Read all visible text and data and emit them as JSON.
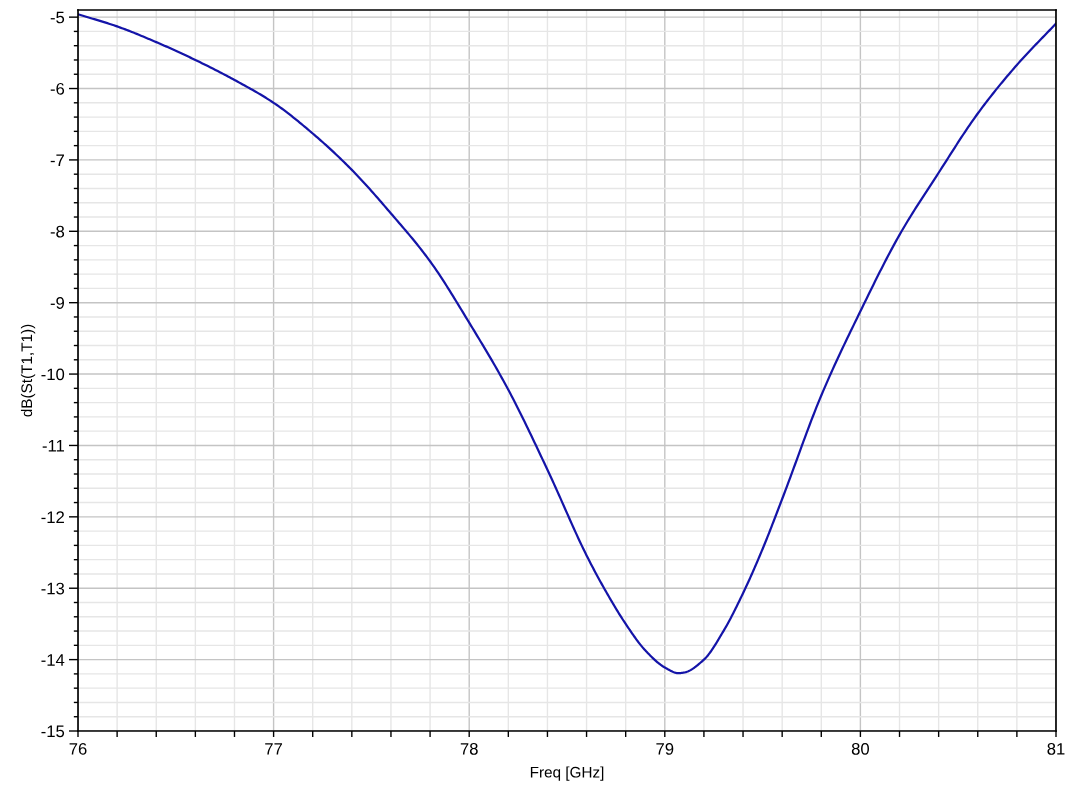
{
  "chart_data": {
    "type": "line",
    "xlabel": "Freq [GHz]",
    "ylabel": "dB(St(T1,T1))",
    "x": [
      76.0,
      76.2,
      76.4,
      76.6,
      76.8,
      77.0,
      77.2,
      77.4,
      77.6,
      77.8,
      78.0,
      78.2,
      78.4,
      78.6,
      78.7,
      78.8,
      78.9,
      79.0,
      79.07,
      79.1,
      79.2,
      79.3,
      79.4,
      79.5,
      79.6,
      79.8,
      80.0,
      80.2,
      80.4,
      80.6,
      80.8,
      81.0
    ],
    "series": [
      {
        "color": "#1414a8",
        "values": [
          -4.96,
          -5.13,
          -5.35,
          -5.6,
          -5.88,
          -6.2,
          -6.63,
          -7.14,
          -7.75,
          -8.42,
          -9.28,
          -10.22,
          -11.34,
          -12.54,
          -13.05,
          -13.5,
          -13.87,
          -14.11,
          -14.19,
          -14.18,
          -14.0,
          -13.6,
          -13.07,
          -12.45,
          -11.75,
          -10.3,
          -9.12,
          -8.05,
          -7.18,
          -6.35,
          -5.67,
          -5.09
        ]
      }
    ],
    "xlim": [
      76,
      81
    ],
    "ylim": [
      -15,
      -4.9
    ],
    "xticks": [
      76,
      {
        "value": 76.2,
        "label": null
      },
      {
        "value": 76.4,
        "label": null
      },
      {
        "value": 76.6,
        "label": null
      },
      {
        "value": 76.8,
        "label": null
      },
      77,
      {
        "value": 77.2,
        "label": null
      },
      {
        "value": 77.4,
        "label": null
      },
      {
        "value": 77.6,
        "label": null
      },
      {
        "value": 77.8,
        "label": null
      },
      78,
      {
        "value": 78.2,
        "label": null
      },
      {
        "value": 78.4,
        "label": null
      },
      {
        "value": 78.6,
        "label": null
      },
      {
        "value": 78.8,
        "label": null
      },
      79,
      {
        "value": 79.2,
        "label": null
      },
      {
        "value": 79.4,
        "label": null
      },
      {
        "value": 79.6,
        "label": null
      },
      {
        "value": 79.8,
        "label": null
      },
      80,
      {
        "value": 80.2,
        "label": null
      },
      {
        "value": 80.4,
        "label": null
      },
      {
        "value": 80.6,
        "label": null
      },
      {
        "value": 80.8,
        "label": null
      },
      81
    ],
    "yticks": [
      -15,
      {
        "value": -14.8,
        "label": null
      },
      {
        "value": -14.6,
        "label": null
      },
      {
        "value": -14.4,
        "label": null
      },
      {
        "value": -14.2,
        "label": null
      },
      -14,
      {
        "value": -13.8,
        "label": null
      },
      {
        "value": -13.6,
        "label": null
      },
      {
        "value": -13.4,
        "label": null
      },
      {
        "value": -13.2,
        "label": null
      },
      -13,
      {
        "value": -12.8,
        "label": null
      },
      {
        "value": -12.6,
        "label": null
      },
      {
        "value": -12.4,
        "label": null
      },
      {
        "value": -12.2,
        "label": null
      },
      -12,
      {
        "value": -11.8,
        "label": null
      },
      {
        "value": -11.6,
        "label": null
      },
      {
        "value": -11.4,
        "label": null
      },
      {
        "value": -11.2,
        "label": null
      },
      -11,
      {
        "value": -10.8,
        "label": null
      },
      {
        "value": -10.6,
        "label": null
      },
      {
        "value": -10.4,
        "label": null
      },
      {
        "value": -10.2,
        "label": null
      },
      -10,
      {
        "value": -9.8,
        "label": null
      },
      {
        "value": -9.6,
        "label": null
      },
      {
        "value": -9.4,
        "label": null
      },
      {
        "value": -9.2,
        "label": null
      },
      -9,
      {
        "value": -8.8,
        "label": null
      },
      {
        "value": -8.6,
        "label": null
      },
      {
        "value": -8.4,
        "label": null
      },
      {
        "value": -8.2,
        "label": null
      },
      -8,
      {
        "value": -7.8,
        "label": null
      },
      {
        "value": -7.6,
        "label": null
      },
      {
        "value": -7.4,
        "label": null
      },
      {
        "value": -7.2,
        "label": null
      },
      -7,
      {
        "value": -6.8,
        "label": null
      },
      {
        "value": -6.6,
        "label": null
      },
      {
        "value": -6.4,
        "label": null
      },
      {
        "value": -6.2,
        "label": null
      },
      -6,
      {
        "value": -5.8,
        "label": null
      },
      {
        "value": -5.6,
        "label": null
      },
      {
        "value": -5.4,
        "label": null
      },
      {
        "value": -5.2,
        "label": null
      },
      -5
    ],
    "grid": true,
    "line_style": "solid"
  }
}
